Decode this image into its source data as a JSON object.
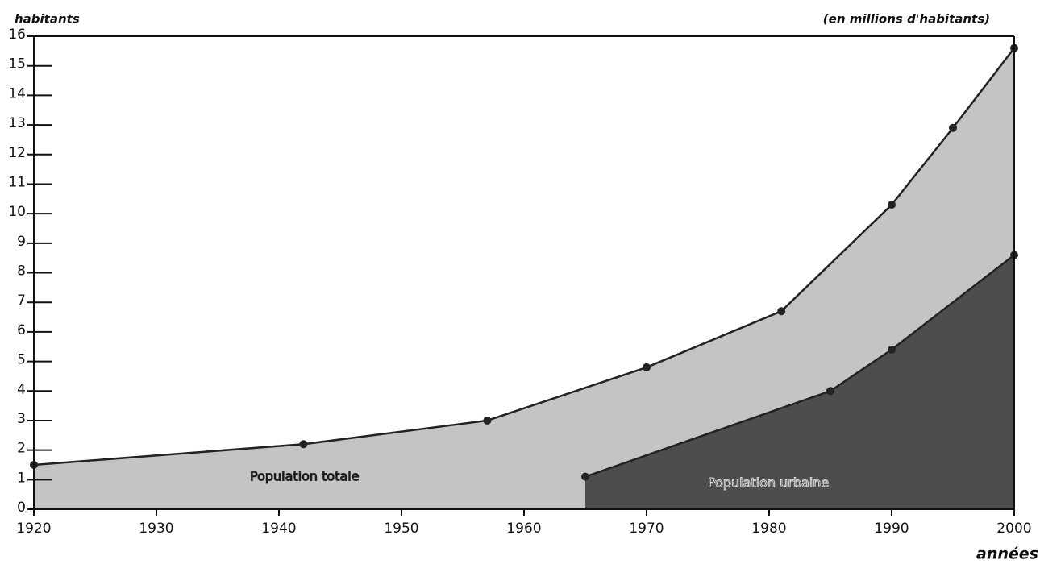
{
  "chart_data": {
    "type": "area",
    "y_label": "habitants",
    "unit_label": "(en millions d'habitants)",
    "x_label": "années",
    "series": [
      {
        "name": "Population totale",
        "color": "#c4c4c4",
        "x": [
          1920,
          1942,
          1957,
          1970,
          1981,
          1990,
          1995,
          2000
        ],
        "values": [
          1.5,
          2.2,
          3.0,
          4.8,
          6.7,
          10.3,
          12.9,
          15.6
        ]
      },
      {
        "name": "Population urbaine",
        "color": "#4d4d4d",
        "x": [
          1965,
          1985,
          1990,
          2000
        ],
        "values": [
          1.1,
          4.0,
          5.4,
          8.6
        ]
      }
    ],
    "xlim": [
      1920,
      2000
    ],
    "xticks": [
      1920,
      1930,
      1940,
      1950,
      1960,
      1970,
      1980,
      1990,
      2000
    ],
    "ylim": [
      0,
      16
    ],
    "yticks": [
      0,
      1,
      2,
      3,
      4,
      5,
      6,
      7,
      8,
      9,
      10,
      11,
      12,
      13,
      14,
      15,
      16
    ]
  }
}
